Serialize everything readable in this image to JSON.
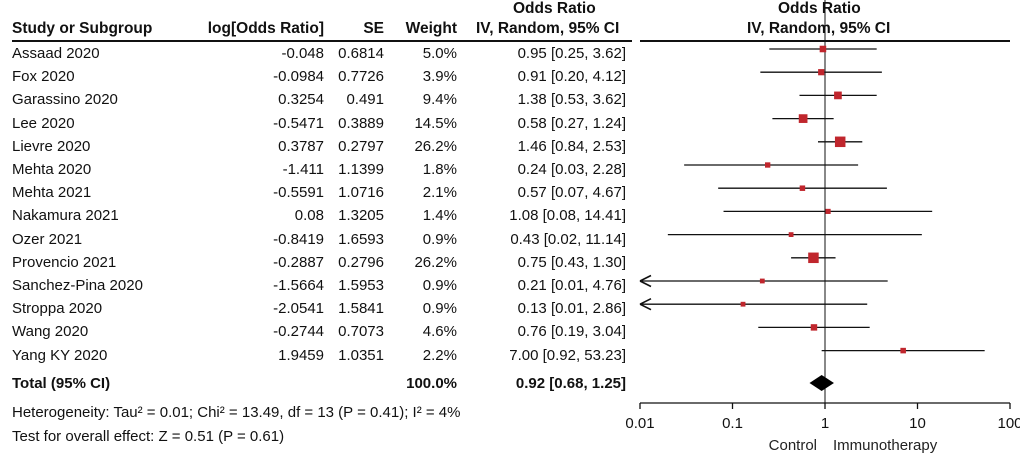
{
  "columns": {
    "study": "Study or Subgroup",
    "log_or": "log[Odds Ratio]",
    "se": "SE",
    "weight": "Weight",
    "or_top": "Odds Ratio",
    "or_bottom": "IV, Random, 95% CI",
    "plot_top": "Odds Ratio",
    "plot_bottom": "IV, Random, 95% CI"
  },
  "rows": [
    {
      "study": "Assaad 2020",
      "log_or": "-0.048",
      "se": "0.6814",
      "weight": "5.0%",
      "ci": "0.95 [0.25, 3.62]"
    },
    {
      "study": "Fox 2020",
      "log_or": "-0.0984",
      "se": "0.7726",
      "weight": "3.9%",
      "ci": "0.91 [0.20, 4.12]"
    },
    {
      "study": "Garassino 2020",
      "log_or": "0.3254",
      "se": "0.491",
      "weight": "9.4%",
      "ci": "1.38 [0.53, 3.62]"
    },
    {
      "study": "Lee 2020",
      "log_or": "-0.5471",
      "se": "0.3889",
      "weight": "14.5%",
      "ci": "0.58 [0.27, 1.24]"
    },
    {
      "study": "Lievre 2020",
      "log_or": "0.3787",
      "se": "0.2797",
      "weight": "26.2%",
      "ci": "1.46 [0.84, 2.53]"
    },
    {
      "study": "Mehta 2020",
      "log_or": "-1.411",
      "se": "1.1399",
      "weight": "1.8%",
      "ci": "0.24 [0.03, 2.28]"
    },
    {
      "study": "Mehta 2021",
      "log_or": "-0.5591",
      "se": "1.0716",
      "weight": "2.1%",
      "ci": "0.57 [0.07, 4.67]"
    },
    {
      "study": "Nakamura 2021",
      "log_or": "0.08",
      "se": "1.3205",
      "weight": "1.4%",
      "ci": "1.08 [0.08, 14.41]"
    },
    {
      "study": "Ozer 2021",
      "log_or": "-0.8419",
      "se": "1.6593",
      "weight": "0.9%",
      "ci": "0.43 [0.02, 11.14]"
    },
    {
      "study": "Provencio 2021",
      "log_or": "-0.2887",
      "se": "0.2796",
      "weight": "26.2%",
      "ci": "0.75 [0.43, 1.30]"
    },
    {
      "study": "Sanchez-Pina 2020",
      "log_or": "-1.5664",
      "se": "1.5953",
      "weight": "0.9%",
      "ci": "0.21 [0.01, 4.76]"
    },
    {
      "study": "Stroppa 2020",
      "log_or": "-2.0541",
      "se": "1.5841",
      "weight": "0.9%",
      "ci": "0.13 [0.01, 2.86]"
    },
    {
      "study": "Wang 2020",
      "log_or": "-0.2744",
      "se": "0.7073",
      "weight": "4.6%",
      "ci": "0.76 [0.19, 3.04]"
    },
    {
      "study": "Yang KY 2020",
      "log_or": "1.9459",
      "se": "1.0351",
      "weight": "2.2%",
      "ci": "7.00 [0.92, 53.23]"
    }
  ],
  "total": {
    "label": "Total (95% CI)",
    "weight": "100.0%",
    "ci": "0.92 [0.68, 1.25]"
  },
  "heterogeneity": "Heterogeneity: Tau² = 0.01; Chi² = 13.49, df = 13 (P = 0.41); I² = 4%",
  "overall_effect": "Test for overall effect: Z = 0.51 (P = 0.61)",
  "colors": {
    "study_marker": "#c0262d",
    "pooled_marker": "#000000",
    "lines": "#111111"
  },
  "chart_data": {
    "type": "forest",
    "x_scale": "log",
    "xlim": [
      0.01,
      100
    ],
    "ticks": [
      0.01,
      0.1,
      1,
      10,
      100
    ],
    "tick_labels": [
      "0.01",
      "0.1",
      "1",
      "10",
      "100"
    ],
    "favours_left": "Control",
    "favours_right": "Immunotherapy",
    "studies": [
      {
        "or": 0.95,
        "lo": 0.25,
        "hi": 3.62,
        "weight": 5.0
      },
      {
        "or": 0.91,
        "lo": 0.2,
        "hi": 4.12,
        "weight": 3.9
      },
      {
        "or": 1.38,
        "lo": 0.53,
        "hi": 3.62,
        "weight": 9.4
      },
      {
        "or": 0.58,
        "lo": 0.27,
        "hi": 1.24,
        "weight": 14.5
      },
      {
        "or": 1.46,
        "lo": 0.84,
        "hi": 2.53,
        "weight": 26.2
      },
      {
        "or": 0.24,
        "lo": 0.03,
        "hi": 2.28,
        "weight": 1.8
      },
      {
        "or": 0.57,
        "lo": 0.07,
        "hi": 4.67,
        "weight": 2.1
      },
      {
        "or": 1.08,
        "lo": 0.08,
        "hi": 14.41,
        "weight": 1.4
      },
      {
        "or": 0.43,
        "lo": 0.02,
        "hi": 11.14,
        "weight": 0.9
      },
      {
        "or": 0.75,
        "lo": 0.43,
        "hi": 1.3,
        "weight": 26.2
      },
      {
        "or": 0.21,
        "lo": 0.01,
        "hi": 4.76,
        "weight": 0.9
      },
      {
        "or": 0.13,
        "lo": 0.01,
        "hi": 2.86,
        "weight": 0.9
      },
      {
        "or": 0.76,
        "lo": 0.19,
        "hi": 3.04,
        "weight": 4.6
      },
      {
        "or": 7.0,
        "lo": 0.92,
        "hi": 53.23,
        "weight": 2.2
      }
    ],
    "pooled": {
      "or": 0.92,
      "lo": 0.68,
      "hi": 1.25
    }
  }
}
